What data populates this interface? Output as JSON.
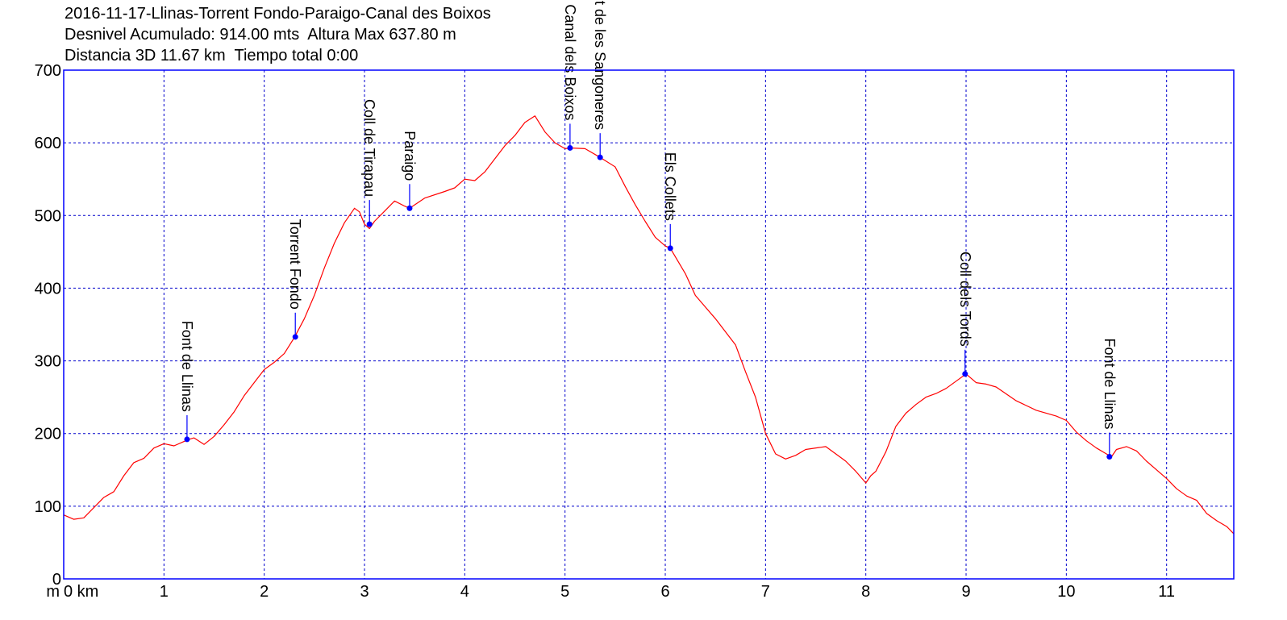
{
  "header": {
    "title": "2016-11-17-Llinas-Torrent Fondo-Paraigo-Canal des Boixos",
    "line2": "Desnivel Acumulado: 914.00 mts  Altura Max 637.80 m",
    "line3": "Distancia 3D 11.67 km  Tiempo total 0:00"
  },
  "colors": {
    "frame": "#0000ff",
    "grid": "#0000cc",
    "profile": "#ff0000",
    "waypoint": "#0000ff"
  },
  "chart_data": {
    "type": "line",
    "xlabel_units": "km",
    "ylabel_units": "m",
    "xlim": [
      0,
      11.67
    ],
    "ylim": [
      0,
      700
    ],
    "x_ticks": [
      0,
      1,
      2,
      3,
      4,
      5,
      6,
      7,
      8,
      9,
      10,
      11
    ],
    "x_tick_labels": [
      "0 km",
      "1",
      "2",
      "3",
      "4",
      "5",
      "6",
      "7",
      "8",
      "9",
      "10",
      "11"
    ],
    "y_tick_labels": [
      "0",
      "100",
      "200",
      "300",
      "400",
      "500",
      "600",
      "700"
    ],
    "y_ticks": [
      0,
      100,
      200,
      300,
      400,
      500,
      600,
      700
    ],
    "y_unit_label": "m",
    "grid": true,
    "profile": {
      "x": [
        0,
        0.1,
        0.2,
        0.3,
        0.4,
        0.5,
        0.6,
        0.7,
        0.8,
        0.9,
        1.0,
        1.1,
        1.2,
        1.25,
        1.3,
        1.4,
        1.5,
        1.6,
        1.7,
        1.8,
        1.9,
        2.0,
        2.1,
        2.2,
        2.3,
        2.4,
        2.5,
        2.6,
        2.7,
        2.8,
        2.9,
        2.95,
        3.0,
        3.05,
        3.1,
        3.2,
        3.3,
        3.4,
        3.45,
        3.6,
        3.8,
        3.9,
        4.0,
        4.1,
        4.2,
        4.3,
        4.4,
        4.5,
        4.6,
        4.7,
        4.8,
        4.9,
        5.0,
        5.05,
        5.2,
        5.35,
        5.5,
        5.6,
        5.7,
        5.8,
        5.9,
        6.0,
        6.05,
        6.2,
        6.3,
        6.5,
        6.7,
        6.8,
        6.9,
        7.0,
        7.1,
        7.2,
        7.3,
        7.4,
        7.6,
        7.8,
        7.9,
        8.0,
        8.05,
        8.1,
        8.2,
        8.3,
        8.4,
        8.5,
        8.6,
        8.7,
        8.8,
        8.9,
        9.0,
        9.1,
        9.2,
        9.3,
        9.5,
        9.7,
        9.9,
        10.0,
        10.1,
        10.2,
        10.3,
        10.4,
        10.45,
        10.5,
        10.6,
        10.7,
        10.8,
        10.9,
        11.0,
        11.1,
        11.2,
        11.3,
        11.4,
        11.5,
        11.6,
        11.67
      ],
      "y": [
        88,
        82,
        84,
        98,
        112,
        120,
        142,
        160,
        166,
        180,
        186,
        183,
        189,
        192,
        194,
        185,
        196,
        212,
        230,
        252,
        270,
        288,
        298,
        310,
        332,
        358,
        390,
        428,
        462,
        490,
        510,
        505,
        488,
        482,
        492,
        506,
        520,
        513,
        510,
        524,
        533,
        538,
        550,
        548,
        560,
        578,
        596,
        610,
        628,
        637,
        615,
        600,
        592,
        593,
        592,
        580,
        567,
        540,
        515,
        492,
        470,
        458,
        455,
        420,
        390,
        358,
        322,
        285,
        250,
        200,
        172,
        165,
        170,
        178,
        182,
        162,
        148,
        132,
        142,
        148,
        175,
        210,
        228,
        240,
        250,
        255,
        262,
        272,
        282,
        270,
        268,
        264,
        245,
        232,
        224,
        218,
        202,
        190,
        180,
        172,
        168,
        178,
        182,
        176,
        162,
        150,
        138,
        124,
        114,
        108,
        90,
        80,
        72,
        62
      ]
    },
    "waypoints": [
      {
        "name": "Font de Llinas",
        "x": 1.23,
        "y": 192
      },
      {
        "name": "Torrent Fondo",
        "x": 2.31,
        "y": 333
      },
      {
        "name": "Coll de Tirapau",
        "x": 3.05,
        "y": 488
      },
      {
        "name": "Paraigo",
        "x": 3.45,
        "y": 510
      },
      {
        "name": "Canal dels Boixos",
        "x": 5.05,
        "y": 593
      },
      {
        "name": "Font de les Sangoneres",
        "x": 5.35,
        "y": 580
      },
      {
        "name": "Els Collets",
        "x": 6.05,
        "y": 455
      },
      {
        "name": "Coll dels Tords",
        "x": 8.99,
        "y": 282
      },
      {
        "name": "Font de Llinas",
        "x": 10.43,
        "y": 168
      }
    ]
  }
}
